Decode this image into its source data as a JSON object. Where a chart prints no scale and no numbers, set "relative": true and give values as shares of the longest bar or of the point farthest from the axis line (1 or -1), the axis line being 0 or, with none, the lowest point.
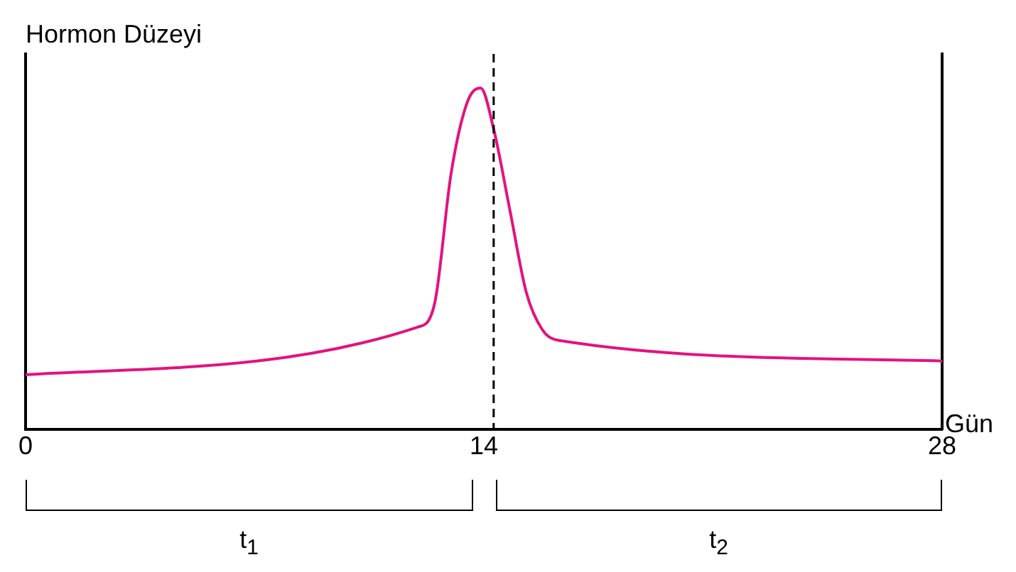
{
  "chart_data": {
    "type": "line",
    "ylabel": "Hormon Düzeyi",
    "xlabel": "Gün",
    "relative": true,
    "x": [
      0,
      12,
      12.5,
      13,
      13.5,
      13.9,
      14.3,
      14.8,
      15.3,
      15.8,
      16.3,
      28
    ],
    "series": [
      {
        "color": "#e2137f",
        "values": [
          0.16,
          0.3,
          0.37,
          0.75,
          0.96,
          1,
          0.88,
          0.64,
          0.4,
          0.29,
          0.26,
          0.2
        ]
      }
    ],
    "xlim": [
      0,
      28
    ],
    "xticks": [
      0,
      14,
      28
    ],
    "grid": false,
    "legend": false,
    "marker": "none",
    "line_style": "solid",
    "ref_lines": [
      {
        "axis": "x",
        "value": 14.3,
        "color": "#000000",
        "line_style": "dashed"
      }
    ],
    "annotations": [
      "t$_{1}$",
      "t$_{2}$"
    ]
  }
}
